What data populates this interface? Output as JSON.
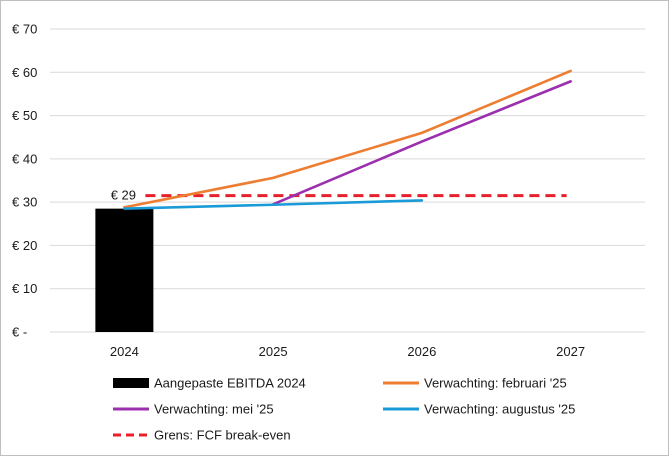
{
  "chart_data": {
    "type": "bar+line",
    "categories": [
      "2024",
      "2025",
      "2026",
      "2027"
    ],
    "y_ticks": [
      "€ -",
      "€ 10",
      "€ 20",
      "€ 30",
      "€ 40",
      "€ 50",
      "€ 60",
      "€ 70"
    ],
    "ylim": [
      0,
      70
    ],
    "grid": "horizontal",
    "legend_position": "bottom",
    "bar": {
      "name": "Aangepaste EBITDA 2024",
      "category": "2024",
      "value": 28.5,
      "label": "€ 29",
      "color": "#000000"
    },
    "series": [
      {
        "name": "Verwachting: februari '25",
        "color": "#ed7d31",
        "style": "solid",
        "x": [
          "2024",
          "2025",
          "2026",
          "2027"
        ],
        "values": [
          28.8,
          35.6,
          46.0,
          60.3
        ]
      },
      {
        "name": "Verwachting: mei '25",
        "color": "#9b2fae",
        "style": "solid",
        "x": [
          "2025",
          "2026",
          "2027"
        ],
        "values": [
          29.5,
          44.0,
          57.9
        ]
      },
      {
        "name": "Verwachting: augustus '25",
        "color": "#1a9bd7",
        "style": "solid",
        "x": [
          "2024",
          "2025",
          "2026"
        ],
        "values": [
          28.5,
          29.4,
          30.4
        ]
      },
      {
        "name": "Grens: FCF break-even",
        "color": "#e8202a",
        "style": "dashed",
        "x": [
          "2024",
          "2025",
          "2026",
          "2027"
        ],
        "values": [
          31.5,
          31.5,
          31.5,
          31.5
        ]
      }
    ]
  }
}
